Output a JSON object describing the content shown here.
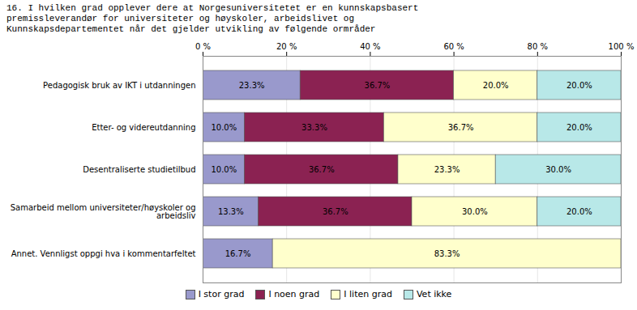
{
  "chart_data": {
    "type": "bar",
    "orientation": "horizontal",
    "stacked": true,
    "title": "16. I hvilken grad opplever dere at Norgesuniversitetet er en kunnskapsbasert\npremissleverandør for universiteter og høyskoler, arbeidslivet og\nKunnskapsdepartementet når det gjelder utvikling  av følgende ormråder",
    "categories": [
      "Pedagogisk bruk av IKT i utdanningen",
      "Etter- og videreutdanning",
      "Desentraliserte studietilbud",
      "Samarbeid mellom universiteter/høyskoler og\narbeidsliv",
      "Annet. Vennligst oppgi hva i kommentarfeltet"
    ],
    "series": [
      {
        "name": "I stor grad",
        "color": "#9999cc",
        "values": [
          23.3,
          10.0,
          10.0,
          13.3,
          16.7
        ],
        "value_labels": [
          "23.3%",
          "10.0%",
          "10.0%",
          "13.3%",
          "16.7%"
        ]
      },
      {
        "name": "I noen grad",
        "color": "#8b2252",
        "values": [
          36.7,
          33.3,
          36.7,
          36.7,
          0.0
        ],
        "value_labels": [
          "36.7%",
          "33.3%",
          "36.7%",
          "36.7%",
          null
        ]
      },
      {
        "name": "I liten grad",
        "color": "#ffffcc",
        "values": [
          20.0,
          36.7,
          23.3,
          30.0,
          83.3
        ],
        "value_labels": [
          "20.0%",
          "36.7%",
          "23.3%",
          "30.0%",
          "83.3%"
        ]
      },
      {
        "name": "Vet ikke",
        "color": "#b8e8e8",
        "values": [
          20.0,
          20.0,
          30.0,
          20.0,
          0.0
        ],
        "value_labels": [
          "20.0%",
          "20.0%",
          "30.0%",
          "20.0%",
          null
        ]
      }
    ],
    "xlim": [
      0,
      100
    ],
    "xticks": [
      {
        "value": 0,
        "label": "0 %"
      },
      {
        "value": 20,
        "label": "20 %"
      },
      {
        "value": 40,
        "label": "40 %"
      },
      {
        "value": 60,
        "label": "60 %"
      },
      {
        "value": 80,
        "label": "80 %"
      },
      {
        "value": 100,
        "label": "100 %"
      }
    ],
    "grid": true,
    "data_labels": true,
    "legend": "bottom"
  }
}
